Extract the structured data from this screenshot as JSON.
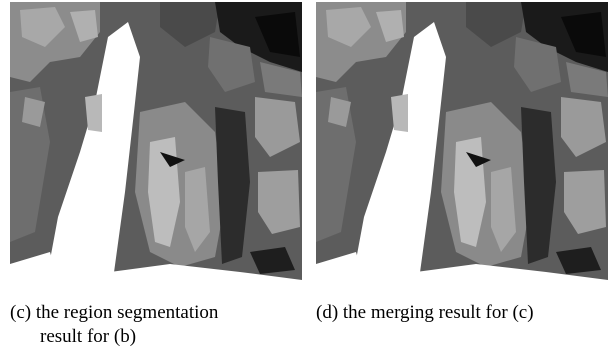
{
  "panels": [
    {
      "caption": [
        "(c) the region segmentation",
        "result for (b)"
      ]
    },
    {
      "caption": [
        "(d) the merging result for (c)"
      ]
    }
  ]
}
